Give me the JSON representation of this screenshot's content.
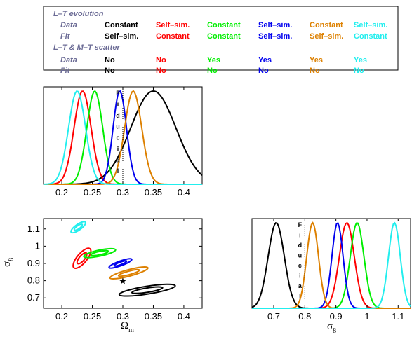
{
  "colors": {
    "black": "#000000",
    "red": "#ff0000",
    "green": "#00ee00",
    "blue": "#0000ee",
    "orange": "#dd8000",
    "cyan": "#22eeee",
    "label": "#6b6b95"
  },
  "legend_table": {
    "section1_title": "L–T evolution",
    "section2_title": "L–T & M–T scatter",
    "row_labels": {
      "data": "Data",
      "fit": "Fit"
    },
    "lt_data": [
      "Constant",
      "Self–sim.",
      "Constant",
      "Self–sim.",
      "Constant",
      "Self–sim."
    ],
    "lt_fit": [
      "Self–sim.",
      "Constant",
      "Constant",
      "Self–sim.",
      "Self–sim.",
      "Constant"
    ],
    "sc_data": [
      "No",
      "No",
      "Yes",
      "Yes",
      "Yes",
      "Yes"
    ],
    "sc_fit": [
      "No",
      "No",
      "No",
      "No",
      "No",
      "No"
    ],
    "column_colors": [
      "black",
      "red",
      "green",
      "blue",
      "orange",
      "cyan"
    ]
  },
  "fiducial_label": "Fiducial",
  "chart_data": [
    {
      "type": "line",
      "panel": "Omega_m marginal",
      "xlim": [
        0.17,
        0.43
      ],
      "xticks": [
        "0.2",
        "0.25",
        "0.3",
        "0.35",
        "0.4"
      ],
      "fiducial_x": 0.3,
      "series": [
        {
          "color": "black",
          "mean": 0.35,
          "sigma": 0.037
        },
        {
          "color": "red",
          "mean": 0.234,
          "sigma": 0.014
        },
        {
          "color": "green",
          "mean": 0.254,
          "sigma": 0.013
        },
        {
          "color": "blue",
          "mean": 0.295,
          "sigma": 0.011
        },
        {
          "color": "orange",
          "mean": 0.317,
          "sigma": 0.014
        },
        {
          "color": "cyan",
          "mean": 0.225,
          "sigma": 0.014
        }
      ]
    },
    {
      "type": "scatter",
      "panel": "sigma_8 vs Omega_m contours",
      "xlim": [
        0.17,
        0.43
      ],
      "ylim": [
        0.64,
        1.16
      ],
      "xticks": [
        "0.2",
        "0.25",
        "0.3",
        "0.35",
        "0.4"
      ],
      "yticks": [
        "0.7",
        "0.8",
        "0.9",
        "1",
        "1.1"
      ],
      "xlabel_main": "Ω",
      "xlabel_sub": "m",
      "ylabel_main": "σ",
      "ylabel_sub": "8",
      "fiducial_point": [
        0.3,
        0.8
      ],
      "fiducial_marker": "★",
      "ellipses": [
        {
          "color": "black",
          "cx": 0.34,
          "cy": 0.745,
          "rx": 0.075,
          "ry": 0.037,
          "rot": -9
        },
        {
          "color": "red",
          "cx": 0.233,
          "cy": 0.93,
          "rx": 0.033,
          "ry": 0.045,
          "rot": -50
        },
        {
          "color": "green",
          "cx": 0.262,
          "cy": 0.96,
          "rx": 0.043,
          "ry": 0.028,
          "rot": -12
        },
        {
          "color": "blue",
          "cx": 0.296,
          "cy": 0.9,
          "rx": 0.032,
          "ry": 0.022,
          "rot": -20
        },
        {
          "color": "orange",
          "cx": 0.31,
          "cy": 0.845,
          "rx": 0.052,
          "ry": 0.03,
          "rot": -15
        },
        {
          "color": "cyan",
          "cx": 0.227,
          "cy": 1.11,
          "rx": 0.023,
          "ry": 0.027,
          "rot": -35
        }
      ]
    },
    {
      "type": "line",
      "panel": "sigma_8 marginal",
      "xlim": [
        0.63,
        1.14
      ],
      "xticks": [
        "0.7",
        "0.8",
        "0.9",
        "1",
        "1.1"
      ],
      "xlabel_main": "σ",
      "xlabel_sub": "8",
      "fiducial_x": 0.8,
      "series": [
        {
          "color": "black",
          "mean": 0.708,
          "sigma": 0.026
        },
        {
          "color": "red",
          "mean": 0.935,
          "sigma": 0.024
        },
        {
          "color": "green",
          "mean": 0.968,
          "sigma": 0.022
        },
        {
          "color": "blue",
          "mean": 0.905,
          "sigma": 0.018
        },
        {
          "color": "orange",
          "mean": 0.825,
          "sigma": 0.019
        },
        {
          "color": "cyan",
          "mean": 1.088,
          "sigma": 0.019
        }
      ]
    }
  ]
}
